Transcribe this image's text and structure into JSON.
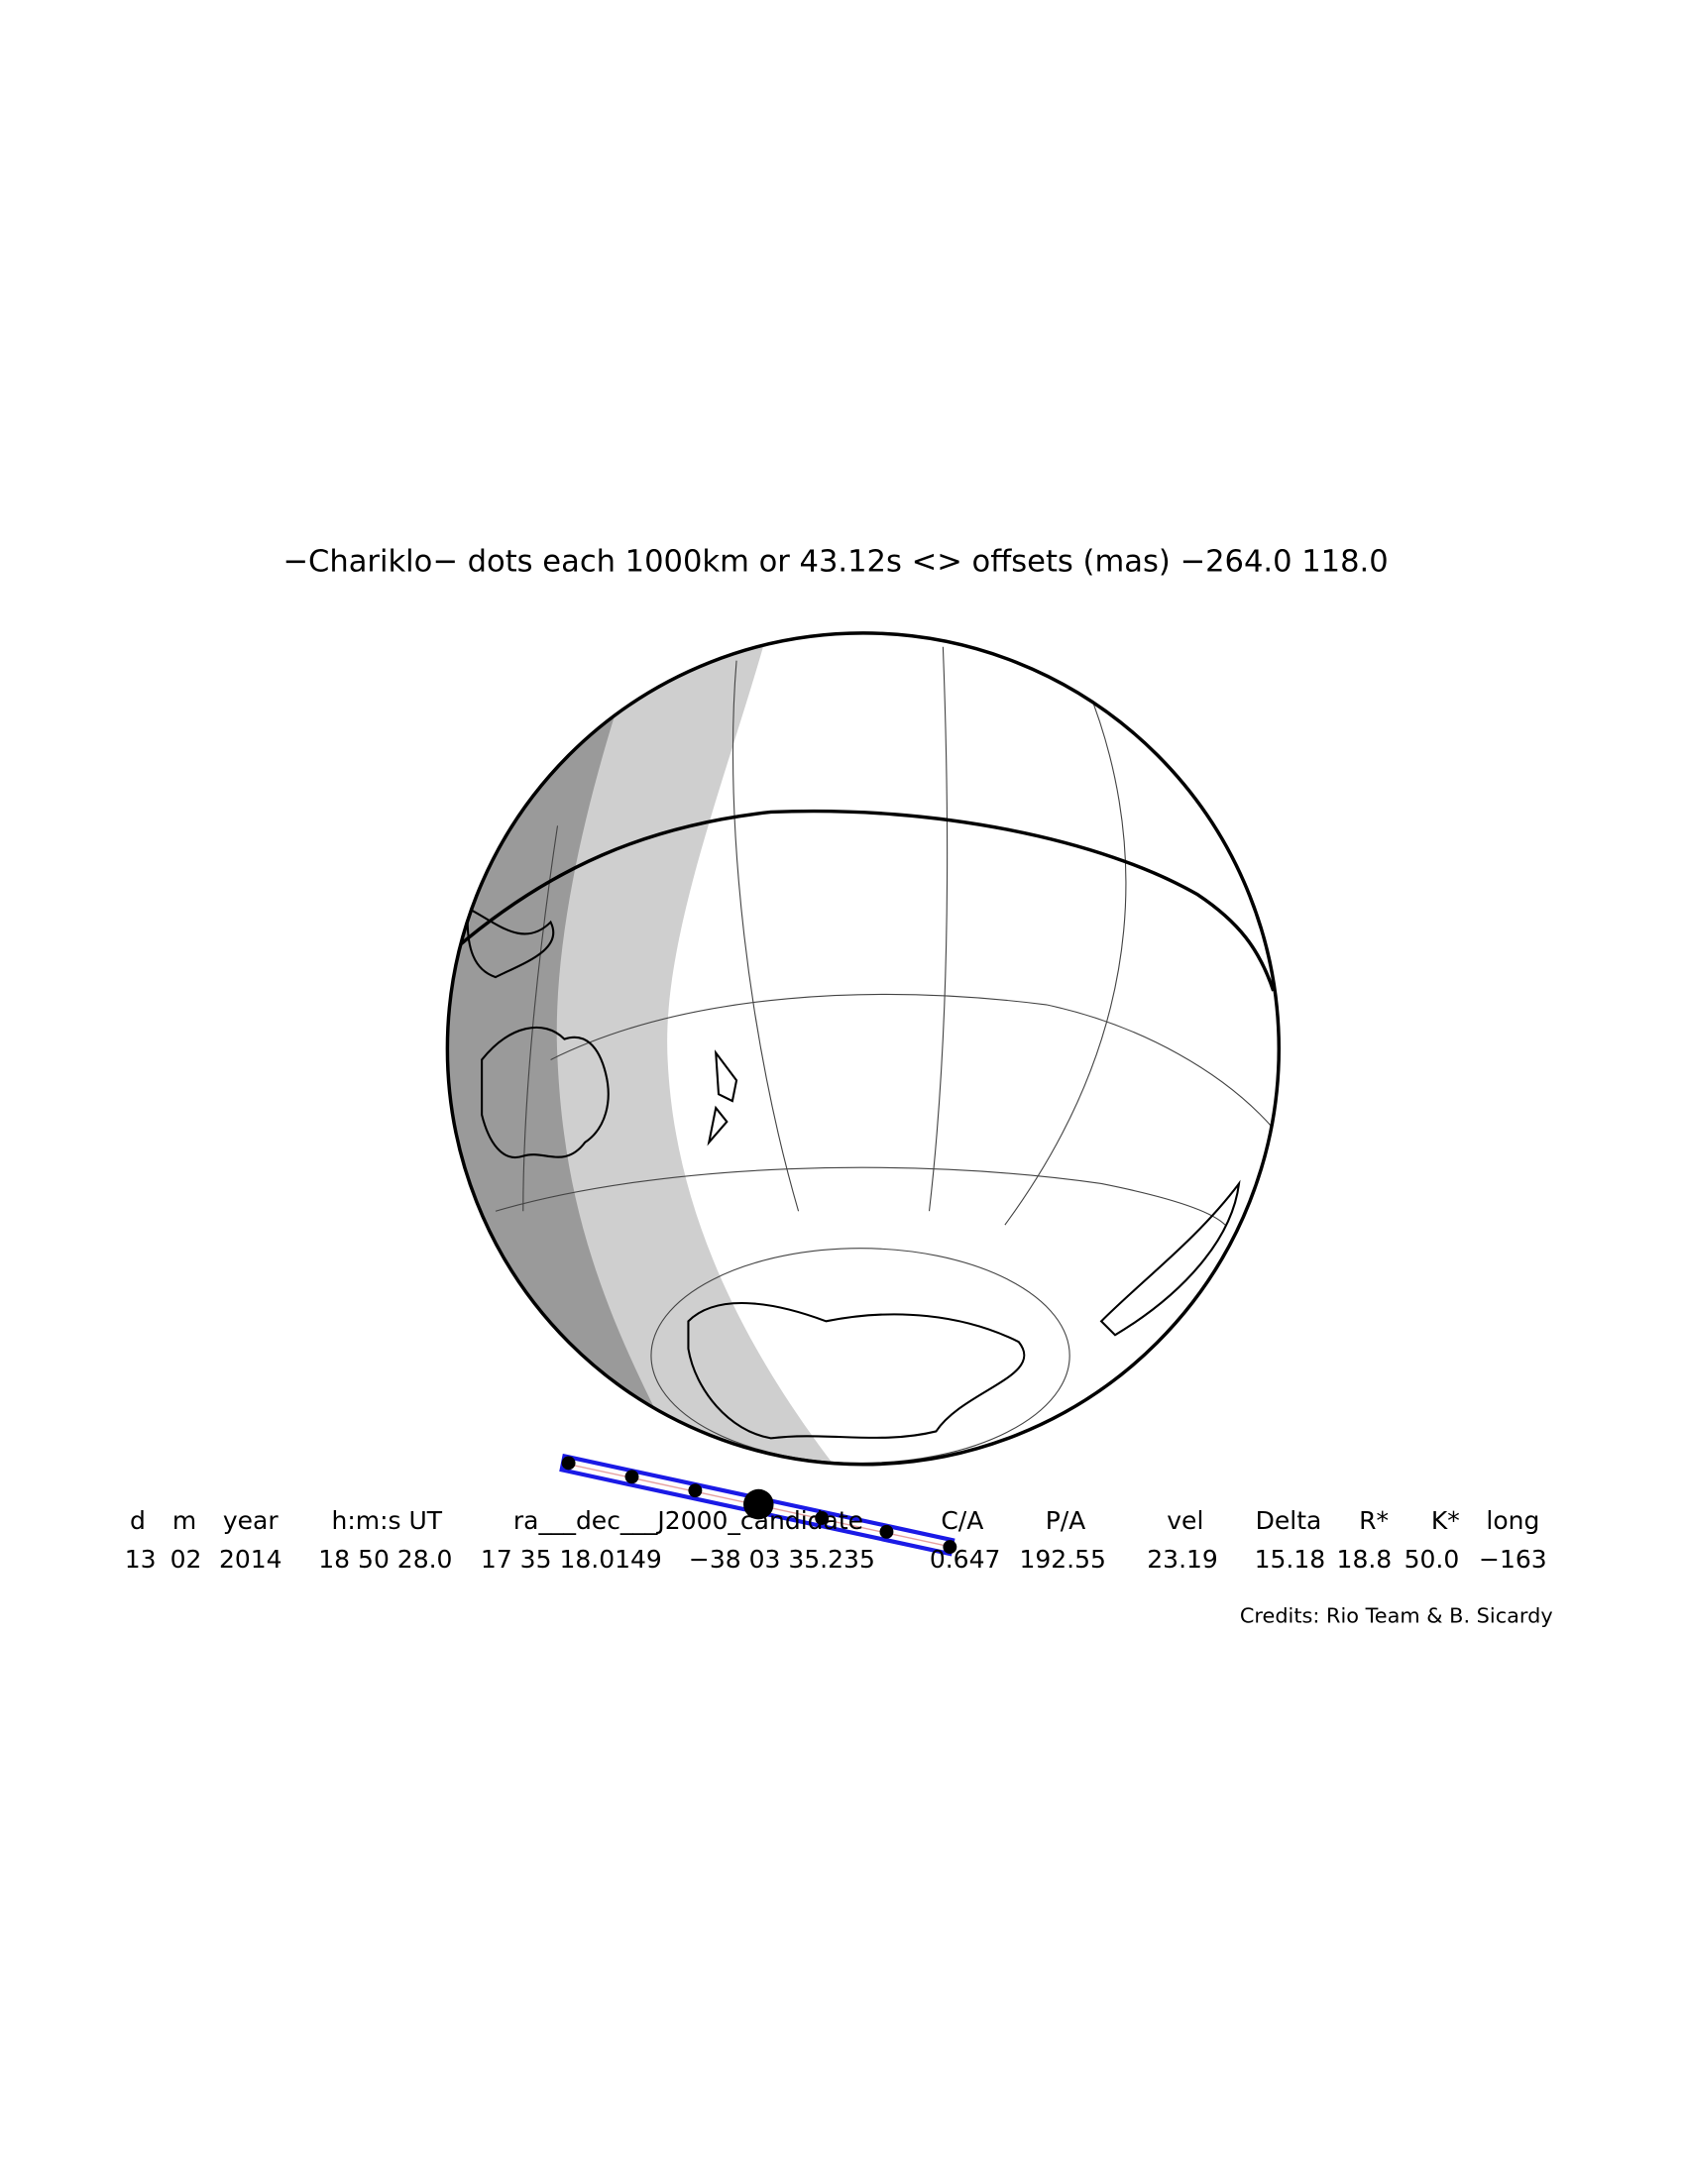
{
  "title": "−Chariklo− dots each 1000km or 43.12s <> offsets (mas) −264.0   118.0",
  "table": {
    "headers": [
      "d",
      "m",
      "year",
      "h:m:s UT",
      "ra___dec___J2000_candidate",
      "C/A",
      "P/A",
      "vel",
      "Delta",
      "R*",
      "K*",
      "long"
    ],
    "values": [
      "13",
      "02",
      "2014",
      "18 50 28.0",
      "17 35 18.0149",
      "−38 03 35.235",
      "0.647",
      "192.55",
      "23.19",
      "15.18",
      "18.8",
      "50.0",
      "−163"
    ]
  },
  "credits": "Credits: Rio Team & B. Sicardy"
}
